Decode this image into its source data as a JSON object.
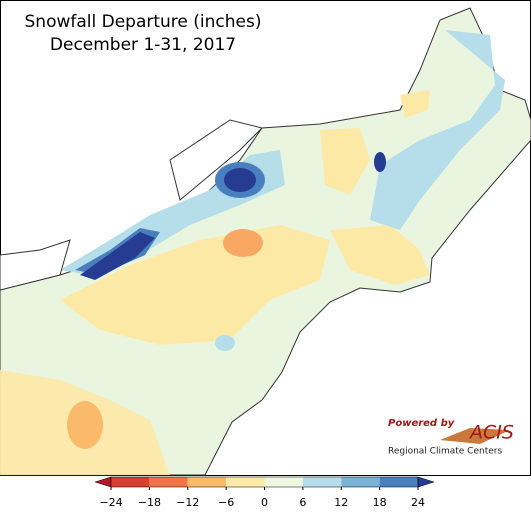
{
  "header": {
    "title": "Snowfall Departure (inches)",
    "subtitle": "December 1-31, 2017"
  },
  "colorbar": {
    "xlim": [
      -24,
      24
    ],
    "ticks": [
      {
        "value": -24,
        "label": "−24"
      },
      {
        "value": -18,
        "label": "−18"
      },
      {
        "value": -12,
        "label": "−12"
      },
      {
        "value": -6,
        "label": "−6"
      },
      0,
      6,
      12,
      18,
      24
    ],
    "colors": [
      "#b2182b",
      "#d6402e",
      "#f0744a",
      "#fbb96b",
      "#fde9a6",
      "#eef7e0",
      "#b5deea",
      "#7ab3d6",
      "#4a7fbf",
      "#263b92"
    ]
  },
  "logo": {
    "tagline": "Powered by",
    "name": "ACIS",
    "org": "Regional Climate Centers"
  }
}
